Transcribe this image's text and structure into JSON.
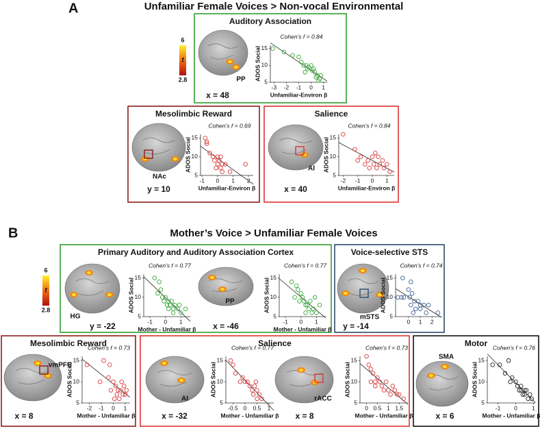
{
  "figure": {
    "panels": [
      {
        "label": "A",
        "title": "Unfamiliar Female Voices > Non-vocal Environmental",
        "colorbar": {
          "max": 6,
          "symbol": "t",
          "min": 2.8
        },
        "boxes": [
          {
            "title": "Auditory Association",
            "color": "#2ea02e",
            "brains": [
              {
                "region": "PP",
                "coord": "x = 48"
              }
            ]
          },
          {
            "title": "Mesolimbic Reward",
            "color": "#8b1c1c",
            "brains": [
              {
                "region": "NAc",
                "coord": "y = 10"
              }
            ]
          },
          {
            "title": "Salience",
            "color": "#e03232",
            "brains": [
              {
                "region": "AI",
                "coord": "x = 40"
              }
            ]
          }
        ]
      },
      {
        "label": "B",
        "title": "Mother’s Voice > Unfamiliar Female Voices",
        "colorbar": {
          "max": 6,
          "symbol": "t",
          "min": 2.8
        },
        "boxes": [
          {
            "title": "Primary Auditory and Auditory Association Cortex",
            "color": "#2ea02e",
            "brains": [
              {
                "region": "HG",
                "coord": "y = -22"
              },
              {
                "region": "PP",
                "coord": "x = -46"
              }
            ]
          },
          {
            "title": "Voice-selective STS",
            "color": "#2c4a6e",
            "brains": [
              {
                "region": "mSTS",
                "coord": "y = -14"
              }
            ]
          },
          {
            "title": "Mesolimbic Reward",
            "color": "#8b1c1c",
            "brains": [
              {
                "region": "vmPFC",
                "coord": "x = 8"
              }
            ]
          },
          {
            "title": "Salience",
            "color": "#e03232",
            "brains": [
              {
                "region": "AI",
                "coord": "x = -32"
              },
              {
                "region": "rACC",
                "coord": "x = 8"
              }
            ]
          },
          {
            "title": "Motor",
            "color": "#111111",
            "brains": [
              {
                "region": "SMA",
                "coord": "x = 6"
              }
            ]
          }
        ]
      }
    ]
  },
  "chart_data": [
    {
      "type": "scatter",
      "title": "Cohen’s f = 0.84",
      "xlabel": "Unfamiliar-Environ β",
      "ylabel": "ADOS Social",
      "color": "#3aa83a",
      "x": [
        -3.1,
        -2.2,
        -1.5,
        -1,
        -0.8,
        -0.6,
        -0.4,
        -0.2,
        0,
        -0.3,
        0.1,
        0.3,
        0.2,
        -0.5,
        0.5,
        0.7,
        0.8,
        0.4,
        0.6
      ],
      "y": [
        15,
        14,
        13,
        12.5,
        11,
        10,
        10,
        9.5,
        10,
        9,
        8.5,
        8,
        9,
        8,
        7,
        6,
        7,
        6.5,
        5.5
      ],
      "xlim": [
        -3.3,
        1.3
      ],
      "xticks": [
        -3,
        -2,
        -1,
        0,
        1
      ],
      "ylim": [
        5,
        16
      ],
      "yticks": [
        5,
        10,
        15
      ]
    },
    {
      "type": "scatter",
      "title": "Cohen’s f = 0.69",
      "xlabel": "Unfamiliar-Environ β",
      "ylabel": "ADOS Social",
      "color": "#d83a3a",
      "x": [
        -0.8,
        -0.7,
        -0.7,
        -0.5,
        -0.3,
        -0.2,
        0,
        0,
        0.1,
        0.3,
        0.2,
        0.5,
        0.8,
        0.3,
        1.8,
        -0.1,
        0.2
      ],
      "y": [
        15,
        14,
        13.5,
        11,
        10,
        9,
        10,
        8,
        9,
        8,
        7,
        8,
        6,
        6,
        8,
        7,
        10
      ],
      "xlim": [
        -1.1,
        2.3
      ],
      "xticks": [
        -1,
        0,
        1,
        2
      ],
      "ylim": [
        5,
        16
      ],
      "yticks": [
        5,
        10,
        15
      ]
    },
    {
      "type": "scatter",
      "title": "Cohen’s f = 0.84",
      "xlabel": "Unfamiliar-Environ β",
      "ylabel": "ADOS Social",
      "color": "#d83a3a",
      "x": [
        -2,
        -1.2,
        -0.8,
        -1,
        -0.5,
        -0.3,
        0,
        0.2,
        0.4,
        0.1,
        -0.2,
        0.5,
        0.8,
        1,
        0.7,
        1.2,
        0.3
      ],
      "y": [
        16,
        12,
        10,
        9,
        8,
        9,
        10,
        11,
        10,
        8,
        7,
        8,
        7,
        8,
        9,
        6,
        7
      ],
      "xlim": [
        -2.3,
        1.5
      ],
      "xticks": [
        -2,
        -1,
        0,
        1
      ],
      "ylim": [
        5,
        16
      ],
      "yticks": [
        5,
        10,
        15
      ]
    },
    {
      "type": "scatter",
      "title": "Cohen’s f = 0.77",
      "xlabel": "Mother - Unfamiliar β",
      "ylabel": "ADOS Social",
      "color": "#3aa83a",
      "x": [
        -0.7,
        -0.4,
        -0.3,
        -0.5,
        -0.2,
        0,
        0.2,
        -0.1,
        0.1,
        0.3,
        0.4,
        0.5,
        0.6,
        0.8,
        1,
        0.2,
        0.5,
        1.3,
        0.9
      ],
      "y": [
        15,
        14,
        12,
        11,
        10,
        10,
        9,
        9,
        8,
        8,
        9,
        7,
        8,
        7,
        6,
        7,
        6,
        7,
        8
      ],
      "xlim": [
        -1.4,
        1.6
      ],
      "xticks": [
        -1,
        0,
        1
      ],
      "ylim": [
        5,
        16
      ],
      "yticks": [
        5,
        10,
        15
      ]
    },
    {
      "type": "scatter",
      "title": "Cohen’s f = 0.77",
      "xlabel": "Mother - Unfamiliar β",
      "ylabel": "ADOS Social",
      "color": "#3aa83a",
      "x": [
        -0.6,
        -0.3,
        -0.2,
        -0.4,
        0,
        0.1,
        0.2,
        -0.1,
        0.3,
        0.4,
        0.5,
        0.6,
        0.8,
        1,
        0.3,
        1.2,
        0.7,
        0.9
      ],
      "y": [
        14,
        13,
        12,
        10,
        11,
        10,
        9,
        9,
        8,
        8,
        7,
        9,
        7,
        6,
        6,
        8,
        6,
        10
      ],
      "xlim": [
        -1.4,
        1.6
      ],
      "xticks": [
        -1,
        0,
        1
      ],
      "ylim": [
        5,
        16
      ],
      "yticks": [
        5,
        10,
        15
      ]
    },
    {
      "type": "scatter",
      "title": "Cohen’s f = 0.74",
      "ylabel": "ADOS Social",
      "color": "#3d6491",
      "x": [
        -0.5,
        0.2,
        0,
        0.3,
        -0.9,
        -0.6,
        -0.4,
        0.1,
        0.5,
        0.8,
        1,
        0.2,
        0.6,
        1.3,
        1.5,
        0.4,
        1,
        2.5,
        1.7
      ],
      "y": [
        15,
        14,
        12,
        11,
        10,
        10,
        10,
        10,
        9,
        9,
        8,
        8,
        7,
        8,
        6,
        6,
        7,
        6,
        8
      ],
      "xlim": [
        -1.1,
        2.8
      ],
      "xticks": [
        0,
        1,
        2
      ],
      "ylim": [
        5,
        16
      ],
      "yticks": [
        5,
        10,
        15
      ]
    },
    {
      "type": "scatter",
      "title": "Cohen’s f = 0.73",
      "xlabel": "Mother - Unfamiliar β",
      "ylabel": "ADOS Social",
      "color": "#d83a3a",
      "x": [
        -2.2,
        -0.8,
        -0.3,
        -1.1,
        -0.4,
        0,
        0.2,
        0.4,
        -0.2,
        0.3,
        0.6,
        0.8,
        1,
        0.1,
        0.5,
        0.9,
        0.7,
        1.1
      ],
      "y": [
        14,
        15,
        14,
        10,
        11,
        10,
        9,
        8,
        8,
        7,
        8,
        7,
        7,
        6,
        6,
        9,
        10,
        8
      ],
      "xlim": [
        -2.6,
        1.4
      ],
      "xticks": [
        -2,
        -1,
        0,
        1
      ],
      "ylim": [
        5,
        16
      ],
      "yticks": [
        5,
        10,
        15
      ]
    },
    {
      "type": "scatter",
      "title": "Cohen’s f = 0.77",
      "xlabel": "Mother - Unfamiliar β",
      "ylabel": "ADOS Social",
      "color": "#d83a3a",
      "x": [
        -0.6,
        -0.5,
        -0.4,
        -0.2,
        -0.1,
        0,
        0.1,
        0.2,
        0.3,
        0.4,
        0.35,
        0.5,
        0.6,
        0.5,
        0.7,
        0.45
      ],
      "y": [
        15,
        14,
        12,
        10,
        11,
        10,
        10,
        9,
        8,
        9,
        7,
        8,
        7,
        6,
        6,
        10
      ],
      "xlim": [
        -0.8,
        1.2
      ],
      "xticks": [
        -0.5,
        0,
        0.5,
        1
      ],
      "ylim": [
        5,
        16
      ],
      "yticks": [
        5,
        10,
        15
      ]
    },
    {
      "type": "scatter",
      "title": "Cohen’s f = 0.73",
      "xlabel": "Mother - Unfamiliar β",
      "ylabel": "ADOS Social",
      "color": "#d83a3a",
      "x": [
        0,
        0.1,
        0.2,
        0.3,
        0.2,
        0.4,
        0.5,
        0.6,
        0.7,
        0.4,
        0.8,
        0.9,
        1,
        1.1,
        1.2,
        1.3,
        1.4,
        1.5,
        1.7
      ],
      "y": [
        16,
        14,
        13,
        12,
        10,
        10,
        11,
        10,
        9,
        9,
        8,
        10,
        8,
        7,
        9,
        8,
        7,
        7,
        6
      ],
      "xlim": [
        -0.3,
        1.9
      ],
      "xticks": [
        0,
        0.5,
        1,
        1.5
      ],
      "ylim": [
        5,
        16
      ],
      "yticks": [
        5,
        10,
        15
      ]
    },
    {
      "type": "scatter",
      "title": "Cohen’s f = 0.76",
      "xlabel": "Mother - Unfamiliar β",
      "ylabel": "ADOS Social",
      "color": "#222222",
      "x": [
        -1.3,
        -0.9,
        -0.4,
        -0.6,
        -0.3,
        -0.2,
        0,
        0.1,
        0.2,
        0.3,
        0.4,
        0.5,
        0.6,
        0.3,
        0.7,
        0.8,
        0.5,
        0.9
      ],
      "y": [
        14,
        14,
        15,
        12,
        10,
        11,
        10,
        9,
        8,
        8,
        7,
        7,
        8,
        9,
        6,
        7,
        8,
        6
      ],
      "xlim": [
        -1.6,
        1.1
      ],
      "xticks": [
        -1,
        0,
        1
      ],
      "ylim": [
        5,
        16
      ],
      "yticks": [
        5,
        10,
        15
      ]
    }
  ]
}
